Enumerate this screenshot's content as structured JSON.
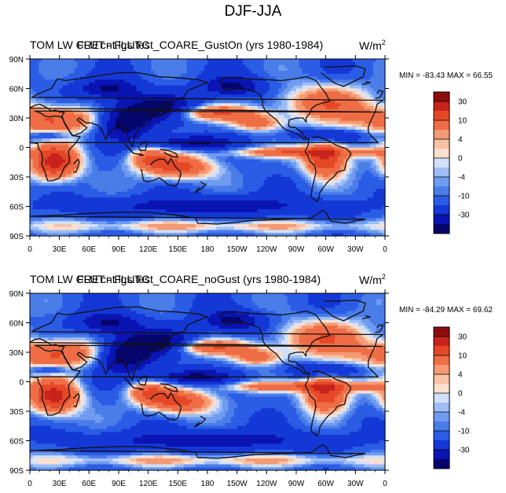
{
  "figure": {
    "title": "DJF-JJA"
  },
  "colormap": {
    "levels": [
      -40,
      -30,
      -20,
      -10,
      -6,
      -4,
      -2,
      0,
      2,
      4,
      6,
      10,
      20,
      30,
      40
    ],
    "colors": [
      "#05056b",
      "#0a14b3",
      "#1438d6",
      "#2b5ce6",
      "#4a7de8",
      "#6f9cf0",
      "#9fbdf5",
      "#d2e1fb",
      "#fbe0d0",
      "#f8c2a5",
      "#f49a74",
      "#ef6d45",
      "#e54827",
      "#c8231a",
      "#8e0d0d"
    ]
  },
  "chart_data": [
    {
      "type": "heatmap",
      "title_left": "TOM LW CRE",
      "title_overlap": "FLUT - FLUTC",
      "title_center": "cnt.lgs.test_COARE_GustOn (yrs 1980-1984)",
      "units": "W/m",
      "units_superscript": "2",
      "stats": "MIN = -83.43 MAX =  66.55",
      "min": -83.43,
      "max": 66.55,
      "x_ticks": [
        "0",
        "30E",
        "60E",
        "90E",
        "120E",
        "150E",
        "180",
        "150W",
        "120W",
        "90W",
        "60W",
        "30W",
        "0"
      ],
      "y_ticks": [
        "90N",
        "60N",
        "30N",
        "0",
        "30S",
        "60S",
        "90S"
      ],
      "colorbar_labels": [
        "30",
        "10",
        "4",
        "0",
        "-4",
        "-10",
        "-30"
      ],
      "lon_range": [
        0,
        360
      ],
      "lat_range": [
        -90,
        90
      ]
    },
    {
      "type": "heatmap",
      "title_left": "TOM LW CRE",
      "title_overlap": "FLUT - FLUTC",
      "title_center": "cnt.lgs.test_COARE_noGust (yrs 1980-1984)",
      "units": "W/m",
      "units_superscript": "2",
      "stats": "MIN = -84.29 MAX =  69.62",
      "min": -84.29,
      "max": 69.62,
      "x_ticks": [
        "0",
        "30E",
        "60E",
        "90E",
        "120E",
        "150E",
        "180",
        "150W",
        "120W",
        "90W",
        "60W",
        "30W",
        "0"
      ],
      "y_ticks": [
        "90N",
        "60N",
        "30N",
        "0",
        "30S",
        "60S",
        "90S"
      ],
      "colorbar_labels": [
        "30",
        "10",
        "4",
        "0",
        "-4",
        "-10",
        "-30"
      ],
      "lon_range": [
        0,
        360
      ],
      "lat_range": [
        -90,
        90
      ]
    }
  ]
}
